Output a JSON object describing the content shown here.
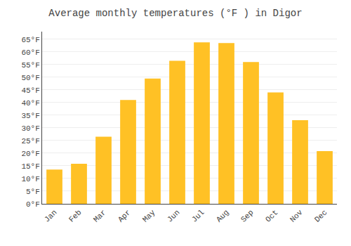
{
  "chart_data": {
    "type": "bar",
    "title": "Average monthly temperatures (°F ) in Digor",
    "categories": [
      "Jan",
      "Feb",
      "Mar",
      "Apr",
      "May",
      "Jun",
      "Jul",
      "Aug",
      "Sep",
      "Oct",
      "Nov",
      "Dec"
    ],
    "values": [
      13.5,
      15.8,
      26.5,
      41.0,
      49.5,
      56.5,
      63.8,
      63.5,
      56.0,
      44.0,
      33.0,
      20.8
    ],
    "color": "#FFC125",
    "ylim": [
      0,
      68
    ],
    "yticks": [
      {
        "value": 0,
        "label": "0°F"
      },
      {
        "value": 5,
        "label": "5°F"
      },
      {
        "value": 10,
        "label": "10°F"
      },
      {
        "value": 15,
        "label": "15°F"
      },
      {
        "value": 20,
        "label": "20°F"
      },
      {
        "value": 25,
        "label": "25°F"
      },
      {
        "value": 30,
        "label": "30°F"
      },
      {
        "value": 35,
        "label": "35°F"
      },
      {
        "value": 40,
        "label": "40°F"
      },
      {
        "value": 45,
        "label": "45°F"
      },
      {
        "value": 50,
        "label": "50°F"
      },
      {
        "value": 55,
        "label": "55°F"
      },
      {
        "value": 60,
        "label": "60°F"
      },
      {
        "value": 65,
        "label": "65°F"
      }
    ],
    "grid": true
  }
}
